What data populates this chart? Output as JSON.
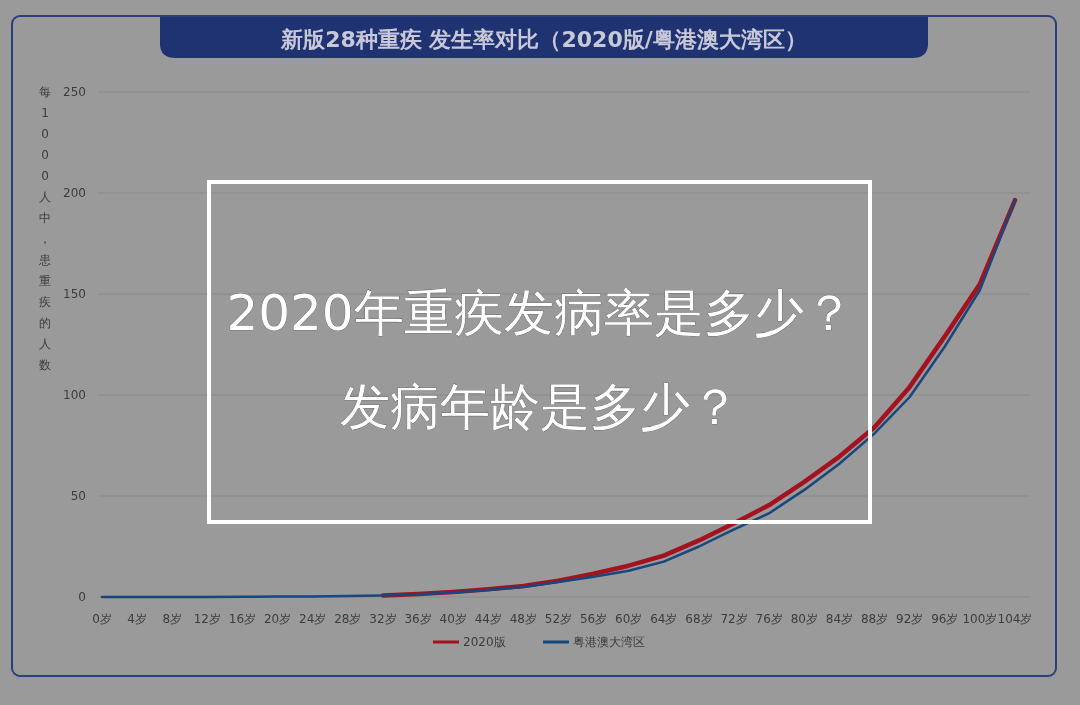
{
  "chart_data": {
    "type": "line",
    "title": "新版28种重疾 发生率对比（2020版/粤港澳大湾区）",
    "ylabel": "每1000人中，患重疾的人数",
    "categories": [
      "0岁",
      "4岁",
      "8岁",
      "12岁",
      "16岁",
      "20岁",
      "24岁",
      "28岁",
      "32岁",
      "36岁",
      "40岁",
      "44岁",
      "48岁",
      "52岁",
      "56岁",
      "60岁",
      "64岁",
      "68岁",
      "72岁",
      "76岁",
      "80岁",
      "84岁",
      "88岁",
      "92岁",
      "96岁",
      "100岁",
      "104岁"
    ],
    "series": [
      {
        "name": "2020版",
        "color": "#a3121f",
        "values": [
          null,
          null,
          null,
          null,
          null,
          null,
          null,
          null,
          0.8,
          1.5,
          2.5,
          3.8,
          5.5,
          8,
          11.5,
          15.5,
          20.5,
          28,
          36.5,
          45.5,
          57,
          69.5,
          84,
          104,
          129,
          155,
          196.5
        ]
      },
      {
        "name": "粤港澳大湾区",
        "color": "#17477d",
        "values": [
          0,
          0,
          0,
          0,
          0.1,
          0.2,
          0.3,
          0.5,
          0.8,
          1.4,
          2.3,
          3.5,
          5,
          7.5,
          10,
          13,
          17.5,
          25,
          33.5,
          41.5,
          53,
          66,
          81,
          99,
          124,
          152,
          196.5
        ]
      }
    ],
    "ylim": [
      0,
      250
    ],
    "yticks": [
      0,
      50,
      100,
      150,
      200,
      250
    ],
    "grid": "y",
    "legend": "bottom",
    "line_style": "solid",
    "annotations": [
      "2020年重疾发病率是多少？",
      "发病年龄是多少？"
    ]
  }
}
